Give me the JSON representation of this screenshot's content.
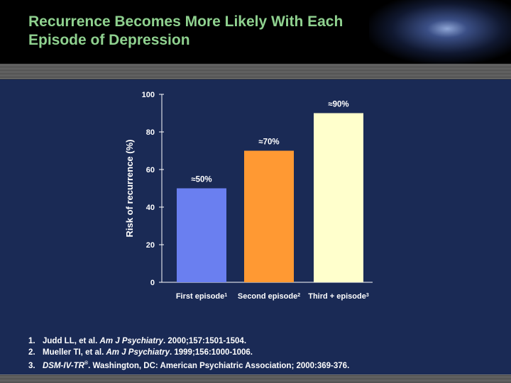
{
  "slide": {
    "title": "Recurrence Becomes More Likely With Each Episode of Depression"
  },
  "chart_data": {
    "type": "bar",
    "categories": [
      "First episode",
      "Second episode",
      "Third + episode"
    ],
    "category_superscripts": [
      "1",
      "2",
      "3"
    ],
    "values": [
      50,
      70,
      90
    ],
    "value_labels": [
      "≈50%",
      "≈70%",
      "≈90%"
    ],
    "bar_colors": [
      "#6a7ff0",
      "#ff9933",
      "#ffffcc"
    ],
    "ylabel": "Risk of recurrence (%)",
    "ylim": [
      0,
      100
    ],
    "yticks": [
      0,
      20,
      40,
      60,
      80,
      100
    ],
    "grid": false
  },
  "references": [
    {
      "num": "1.",
      "parts": [
        {
          "text": "Judd LL, et al. ",
          "italic": false
        },
        {
          "text": "Am J Psychiatry",
          "italic": true
        },
        {
          "text": ". 2000;157:1501-1504.",
          "italic": false
        }
      ]
    },
    {
      "num": "2.",
      "parts": [
        {
          "text": "Mueller TI, et al. ",
          "italic": false
        },
        {
          "text": "Am J Psychiatry",
          "italic": true
        },
        {
          "text": ". 1999;156:1000-1006.",
          "italic": false
        }
      ]
    },
    {
      "num": "3.",
      "parts": [
        {
          "text": "DSM-IV-TR",
          "italic": true
        },
        {
          "text": "®",
          "italic": false,
          "sup": true
        },
        {
          "text": ". Washington, DC: American Psychiatric Association; 2000:369-376.",
          "italic": false
        }
      ]
    }
  ]
}
